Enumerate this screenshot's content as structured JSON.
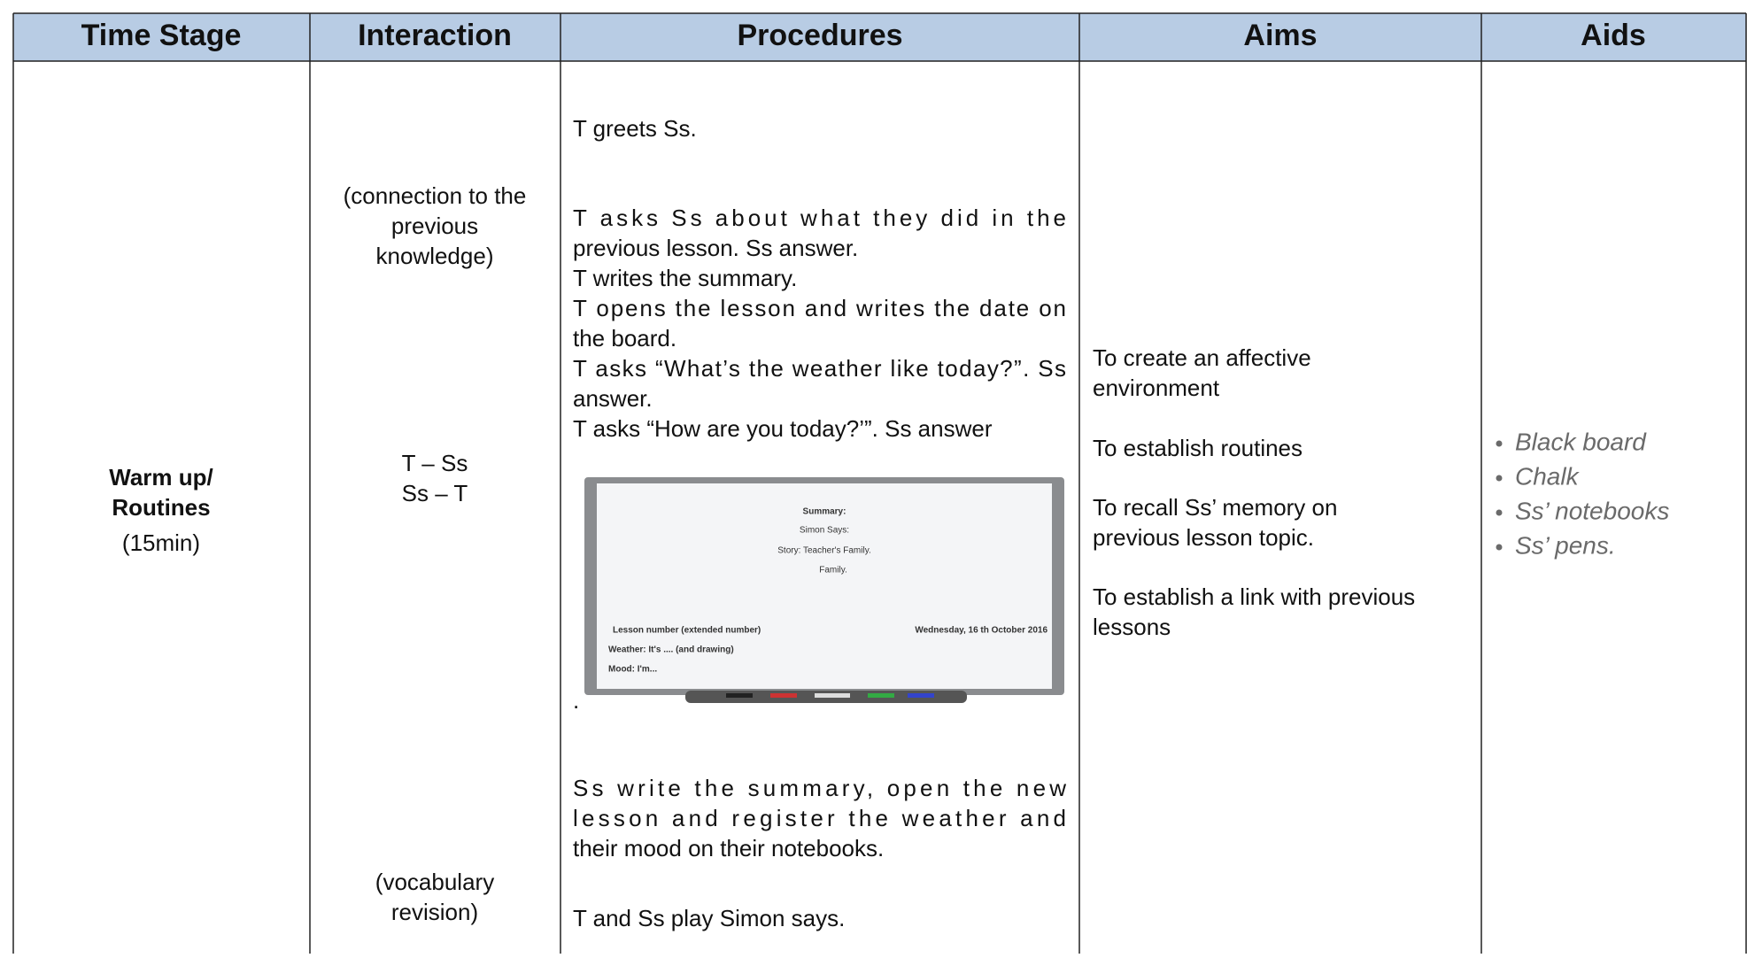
{
  "table": {
    "headers": [
      "Time Stage",
      "Interaction",
      "Procedures",
      "Aims",
      "Aids"
    ],
    "row": {
      "time_stage": {
        "stage": [
          "Warm up/",
          "Routines"
        ],
        "duration": "(15min)"
      },
      "interaction": {
        "note_1": [
          "(connection to the",
          "previous",
          "knowledge)"
        ],
        "pattern": [
          "T – Ss",
          "Ss – T"
        ],
        "note_2": [
          "(vocabulary",
          "revision)"
        ]
      },
      "procedures": {
        "greeting": "T greets Ss.",
        "steps": [
          [
            "T asks Ss about what they did in the",
            "previous lesson. Ss answer."
          ],
          [
            "T writes the summary."
          ],
          [
            "T opens the lesson and writes the date on",
            "the board."
          ],
          [
            "T asks “What’s the weather like today?”. Ss",
            "answer."
          ],
          [
            "T asks “How are you today?’”. Ss answer"
          ]
        ],
        "board": {
          "summary": "Summary:",
          "simon": "Simon Says:",
          "story": "Story: Teacher's Family.",
          "family": "Family.",
          "lesson": "Lesson number (extended number)",
          "date": "Wednesday, 16 th October 2016",
          "weather": "Weather: It's .... (and drawing)",
          "mood": "Mood: I'm..."
        },
        "board_dot": ".",
        "after": [
          [
            "Ss write the summary, open the new",
            "lesson and register the weather and",
            "their mood on their notebooks."
          ],
          [
            "T and Ss play Simon says."
          ]
        ]
      },
      "aims": [
        [
          "To create an affective",
          "environment"
        ],
        [
          "To establish routines"
        ],
        [
          "To recall Ss’ memory on",
          "previous lesson topic."
        ],
        [
          "To establish a link with previous",
          "lessons"
        ]
      ],
      "aids": [
        "Black board",
        "Chalk",
        "Ss’ notebooks",
        "Ss’ pens."
      ]
    }
  }
}
